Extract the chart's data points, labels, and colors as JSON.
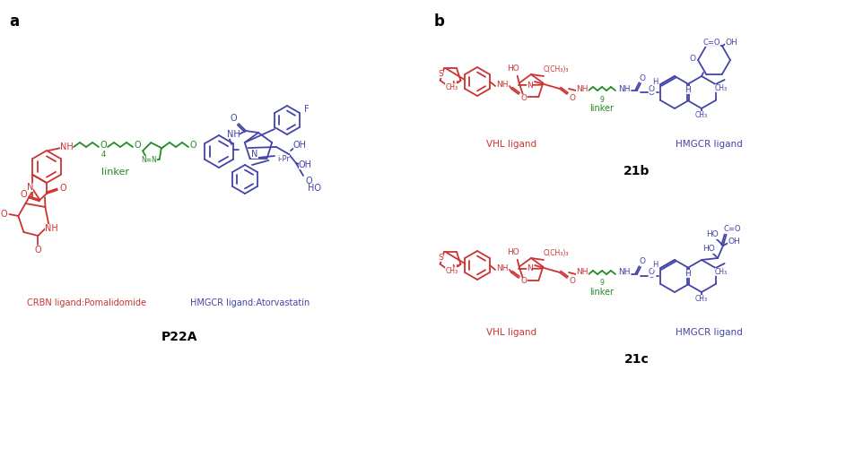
{
  "fig_width": 9.43,
  "fig_height": 5.01,
  "dpi": 100,
  "background_color": "#ffffff",
  "red_color": "#cc3333",
  "green_color": "#228B22",
  "blue_color": "#4444aa",
  "black_color": "#000000",
  "panel_a_label": "a",
  "panel_b_label": "b",
  "crbn_label": "CRBN ligand:Pomalidomide",
  "hmgcr_label_a": "HMGCR ligand:Atorvastatin",
  "linker_label_a": "linker",
  "compound_label_a": "P22A",
  "vhl_label": "VHL ligand",
  "hmgcr_label_b": "HMGCR ligand",
  "linker_label_b": "linker",
  "compound_label_b": "21b",
  "compound_label_c": "21c"
}
